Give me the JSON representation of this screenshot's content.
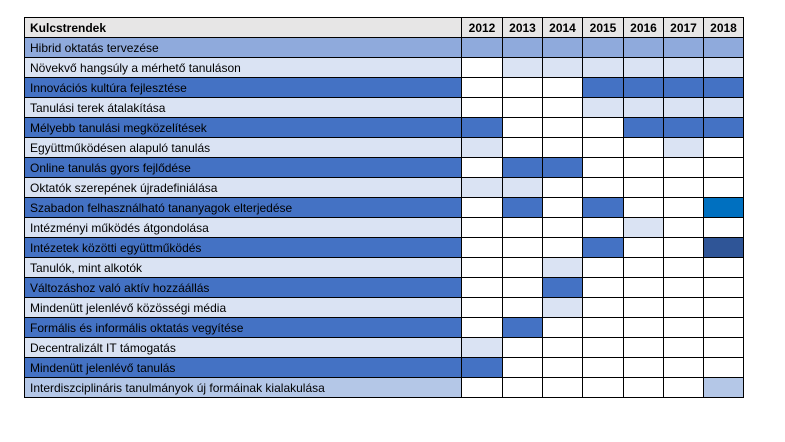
{
  "header": {
    "title": "Kulcstrendek",
    "years": [
      "2012",
      "2013",
      "2014",
      "2015",
      "2016",
      "2017",
      "2018"
    ]
  },
  "palette": {
    "0": "#ffffff",
    "1": "#dae3f3",
    "2": "#b4c7e7",
    "3": "#8faadc",
    "4": "#4472c4",
    "5": "#0070c0",
    "6": "#2f5597"
  },
  "rows": [
    {
      "label": "Hibrid oktatás tervezése",
      "bg": "#8faadc",
      "cells": [
        3,
        3,
        3,
        3,
        3,
        3,
        3
      ]
    },
    {
      "label": "Növekvő hangsúly a mérhető tanuláson",
      "bg": "#dae3f3",
      "cells": [
        0,
        1,
        1,
        1,
        1,
        1,
        1
      ]
    },
    {
      "label": "Innovációs kultúra fejlesztése",
      "bg": "#4472c4",
      "cells": [
        0,
        0,
        0,
        4,
        4,
        4,
        4
      ]
    },
    {
      "label": "Tanulási terek átalakítása",
      "bg": "#dae3f3",
      "cells": [
        0,
        0,
        0,
        1,
        1,
        1,
        1
      ]
    },
    {
      "label": "Mélyebb tanulási megközelítések",
      "bg": "#4472c4",
      "cells": [
        4,
        0,
        0,
        0,
        4,
        4,
        4
      ]
    },
    {
      "label": "Együttműködésen alapuló tanulás",
      "bg": "#dae3f3",
      "cells": [
        1,
        0,
        0,
        0,
        0,
        1,
        0
      ]
    },
    {
      "label": "Online tanulás gyors fejlődése",
      "bg": "#4472c4",
      "cells": [
        0,
        4,
        4,
        0,
        0,
        0,
        0
      ]
    },
    {
      "label": "Oktatók szerepének újradefiniálása",
      "bg": "#dae3f3",
      "cells": [
        1,
        1,
        0,
        0,
        0,
        0,
        0
      ]
    },
    {
      "label": "Szabadon felhasználható tananyagok elterjedése",
      "bg": "#4472c4",
      "cells": [
        0,
        4,
        0,
        4,
        0,
        0,
        5
      ]
    },
    {
      "label": "Intézményi működés átgondolása",
      "bg": "#dae3f3",
      "cells": [
        0,
        0,
        0,
        0,
        1,
        0,
        0
      ]
    },
    {
      "label": "Intézetek közötti együttműködés",
      "bg": "#4472c4",
      "cells": [
        0,
        0,
        0,
        4,
        0,
        0,
        6
      ]
    },
    {
      "label": "Tanulók, mint alkotók",
      "bg": "#dae3f3",
      "cells": [
        0,
        0,
        1,
        0,
        0,
        0,
        0
      ]
    },
    {
      "label": "Változáshoz való aktív hozzáállás",
      "bg": "#4472c4",
      "cells": [
        0,
        0,
        4,
        0,
        0,
        0,
        0
      ]
    },
    {
      "label": "Mindenütt jelenlévő közösségi média",
      "bg": "#dae3f3",
      "cells": [
        0,
        0,
        1,
        0,
        0,
        0,
        0
      ]
    },
    {
      "label": "Formális és informális oktatás vegyítése",
      "bg": "#4472c4",
      "cells": [
        0,
        4,
        0,
        0,
        0,
        0,
        0
      ]
    },
    {
      "label": "Decentralizált IT támogatás",
      "bg": "#dae3f3",
      "cells": [
        1,
        0,
        0,
        0,
        0,
        0,
        0
      ]
    },
    {
      "label": "Mindenütt jelenlévő tanulás",
      "bg": "#4472c4",
      "cells": [
        4,
        0,
        0,
        0,
        0,
        0,
        0
      ]
    },
    {
      "label": "Interdiszciplináris tanulmányok új formáinak kialakulása",
      "bg": "#b4c7e7",
      "cells": [
        0,
        0,
        0,
        0,
        0,
        0,
        2
      ]
    }
  ]
}
